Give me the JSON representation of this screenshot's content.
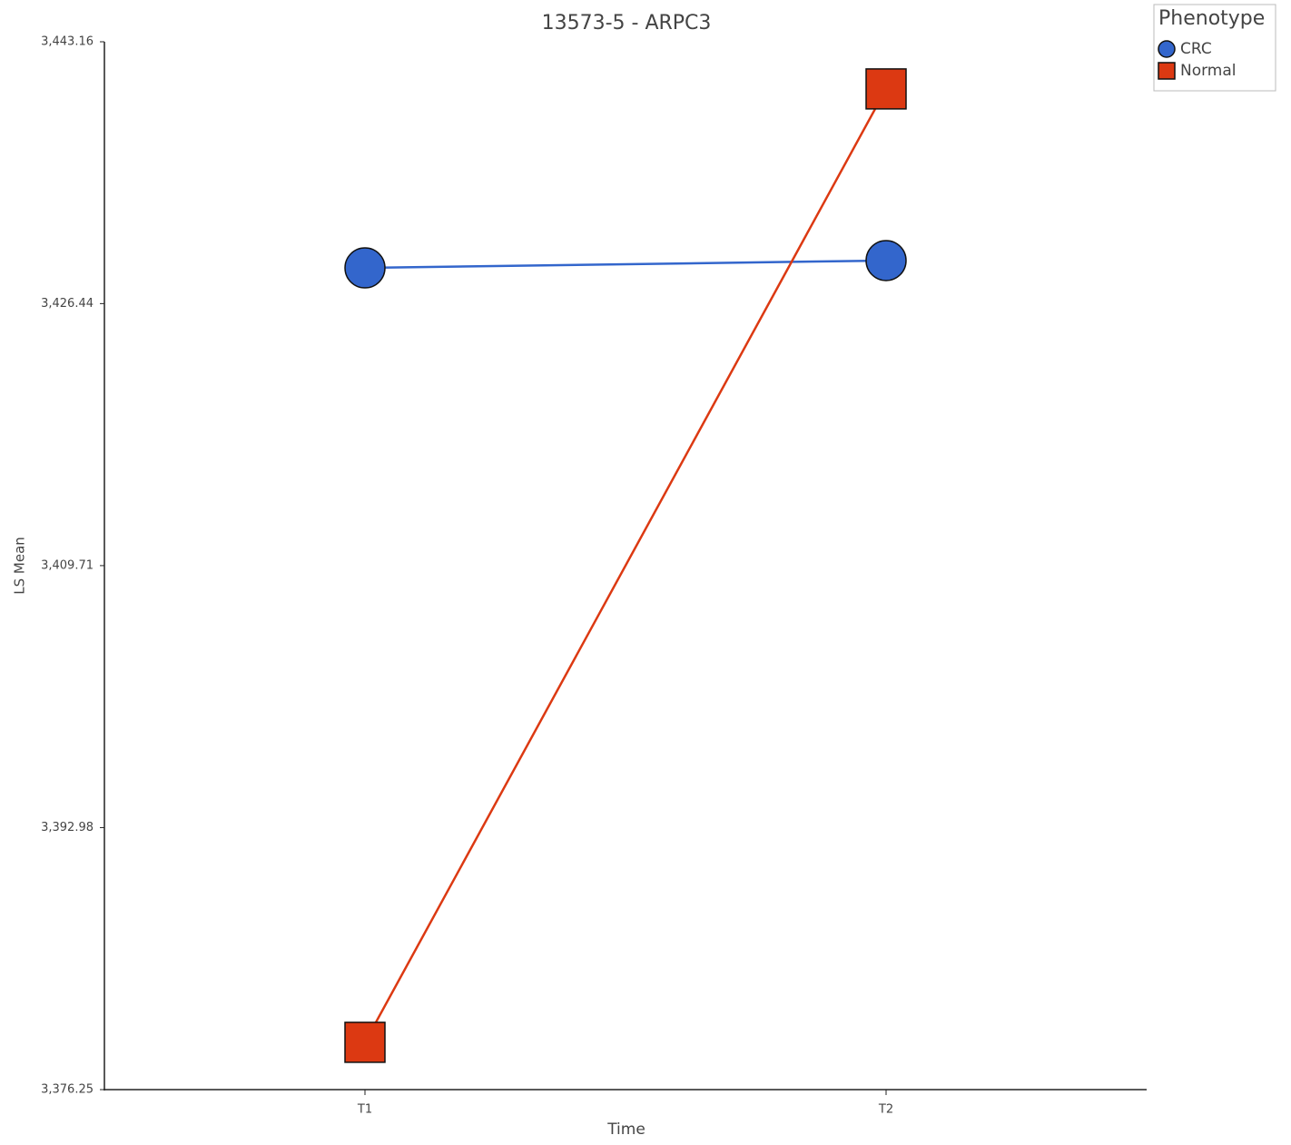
{
  "chart_data": {
    "type": "line",
    "title": "13573-5 - ARPC3",
    "x_label": "Time",
    "y_label": "LS Mean",
    "categories": [
      "T1",
      "T2"
    ],
    "series": [
      {
        "name": "CRC",
        "color": "#3366cc",
        "marker": "circle",
        "values": [
          3428.72,
          3429.19
        ]
      },
      {
        "name": "Normal",
        "color": "#dc3912",
        "marker": "square",
        "values": [
          3379.27,
          3440.15
        ]
      }
    ],
    "ylim": [
      3376.25,
      3443.16
    ],
    "yticks": [
      {
        "value": 3376.25,
        "label": "3,376.25"
      },
      {
        "value": 3392.98,
        "label": "3,392.98"
      },
      {
        "value": 3409.71,
        "label": "3,409.71"
      },
      {
        "value": 3426.44,
        "label": "3,426.44"
      },
      {
        "value": 3443.16,
        "label": "3,443.16"
      }
    ],
    "legend_title": "Phenotype",
    "legend_position": "top-right",
    "grid": false
  }
}
